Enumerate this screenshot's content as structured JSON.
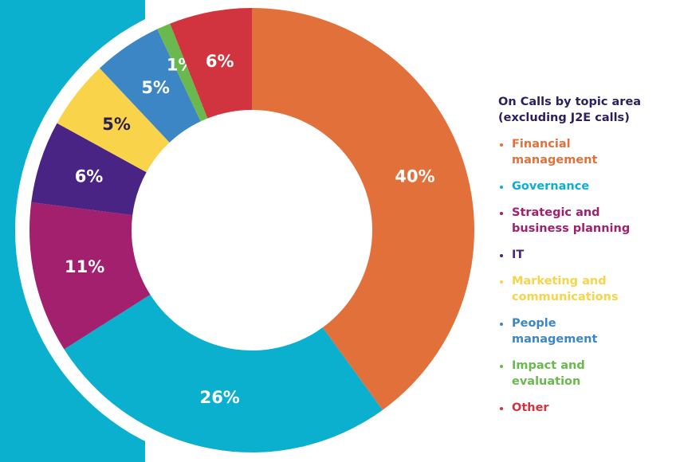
{
  "chart_data": {
    "type": "donut",
    "title": "On Calls by topic area (excluding J2E calls)",
    "categories": [
      "Financial management",
      "Governance",
      "Strategic and business planning",
      "IT",
      "Marketing and communications",
      "People management",
      "Impact and evaluation",
      "Other"
    ],
    "values": [
      40,
      26,
      11,
      6,
      5,
      5,
      1,
      6
    ],
    "value_labels": [
      "40%",
      "26%",
      "11%",
      "6%",
      "5%",
      "5%",
      "1%",
      "6%"
    ],
    "colors": [
      "#e2703a",
      "#0bb0cf",
      "#a3206e",
      "#4a2484",
      "#f9d44a",
      "#3d86c6",
      "#6ab94e",
      "#d1343e"
    ]
  }
}
